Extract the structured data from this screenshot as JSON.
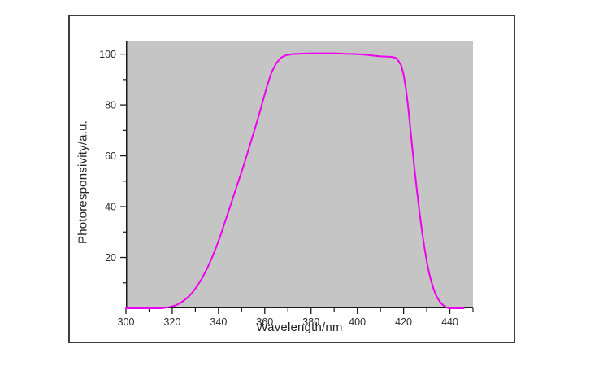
{
  "figure": {
    "background_color": "#ffffff",
    "frame_border_color": "#3d3d3d",
    "plot_background_color": "#c5c5c5",
    "axis_color": "#1a1a1a",
    "tick_label_color": "#2b2b2b",
    "curve_color": "#ee00ee"
  },
  "chart_data": {
    "type": "line",
    "title": "",
    "xlabel": "Wavelength/nm",
    "ylabel": "Photoresponsivity/a.u.",
    "xlim": [
      300,
      450
    ],
    "ylim": [
      0,
      105
    ],
    "grid": false,
    "legend": null,
    "plot_area_style": "gray filled, left and bottom axes only, outward ticks",
    "x_major_ticks": [
      300,
      320,
      340,
      360,
      380,
      400,
      420,
      440
    ],
    "x_minor_ticks": [
      310,
      330,
      350,
      370,
      390,
      410,
      430,
      450
    ],
    "y_major_ticks": [
      20,
      40,
      60,
      80,
      100
    ],
    "y_minor_ticks": [
      10,
      30,
      50,
      70,
      90
    ],
    "series": [
      {
        "name": "photoresponsivity",
        "color": "#ee00ee",
        "line_width": 2,
        "x": [
          300,
          304,
          308,
          312,
          315,
          317,
          319,
          321,
          323,
          325,
          327,
          329,
          331,
          333,
          335,
          337,
          339,
          341,
          343,
          345,
          347,
          349,
          351,
          353,
          355,
          357,
          359,
          361,
          363,
          365,
          367,
          369,
          372,
          376,
          380,
          385,
          390,
          395,
          400,
          404,
          407,
          410,
          413,
          415,
          417,
          418,
          419,
          420,
          421,
          422,
          423,
          424,
          425,
          426,
          427,
          428,
          429,
          430,
          431,
          432,
          433,
          434,
          435,
          436,
          437,
          438,
          439,
          440,
          442,
          444,
          446
        ],
        "y": [
          0,
          0,
          0,
          0,
          0,
          0.2,
          0.5,
          1,
          1.8,
          3,
          4.5,
          6.5,
          9,
          12,
          15.5,
          19.5,
          24,
          29,
          34.5,
          40,
          45.5,
          51,
          56.5,
          62.5,
          68.5,
          74.5,
          81,
          87.5,
          93,
          96.5,
          98.6,
          99.5,
          100,
          100.2,
          100.3,
          100.3,
          100.3,
          100.1,
          100,
          99.7,
          99.4,
          99.1,
          99,
          98.9,
          98.4,
          97,
          95.5,
          92,
          86.5,
          79,
          70,
          61,
          52.5,
          44.5,
          37,
          30,
          24,
          18.5,
          14,
          10.5,
          7.5,
          5.2,
          3.5,
          2.2,
          1.3,
          0.6,
          0.2,
          0,
          0,
          0,
          0
        ]
      }
    ]
  }
}
